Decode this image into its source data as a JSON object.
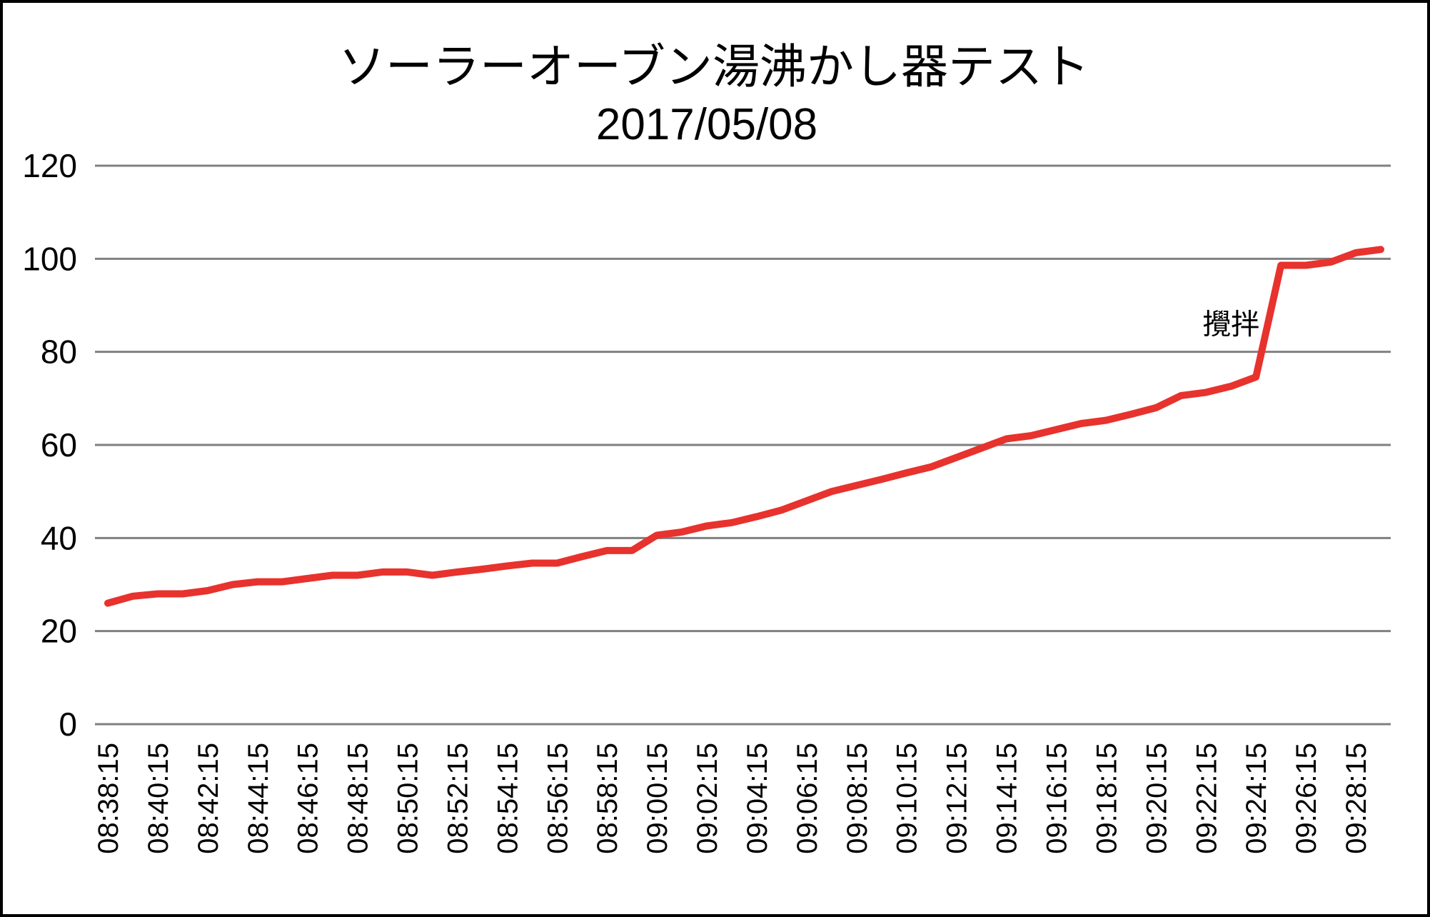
{
  "chart_data": {
    "type": "line",
    "title": "ソーラーオーブン湯沸かし器テスト",
    "subtitle": "2017/05/08",
    "xlabel": "",
    "ylabel": "",
    "ylim": [
      0,
      120
    ],
    "yticks": [
      "0",
      "20",
      "40",
      "60",
      "80",
      "100",
      "120"
    ],
    "grid": true,
    "x": [
      "08:38:15",
      "08:39:15",
      "08:40:15",
      "08:41:15",
      "08:42:15",
      "08:43:15",
      "08:44:15",
      "08:45:15",
      "08:46:15",
      "08:47:15",
      "08:48:15",
      "08:49:15",
      "08:50:15",
      "08:51:15",
      "08:52:15",
      "08:53:15",
      "08:54:15",
      "08:55:15",
      "08:56:15",
      "08:57:15",
      "08:58:15",
      "08:59:15",
      "09:00:15",
      "09:01:15",
      "09:02:15",
      "09:03:15",
      "09:04:15",
      "09:05:15",
      "09:06:15",
      "09:07:15",
      "09:08:15",
      "09:09:15",
      "09:10:15",
      "09:11:15",
      "09:12:15",
      "09:13:15",
      "09:14:15",
      "09:15:15",
      "09:16:15",
      "09:17:15",
      "09:18:15",
      "09:19:15",
      "09:20:15",
      "09:21:15",
      "09:22:15",
      "09:23:15",
      "09:24:15",
      "09:25:15",
      "09:26:15",
      "09:27:15",
      "09:28:15",
      "09:29:15"
    ],
    "xticks": [
      "08:38:15",
      "08:40:15",
      "08:42:15",
      "08:44:15",
      "08:46:15",
      "08:48:15",
      "08:50:15",
      "08:52:15",
      "08:54:15",
      "08:56:15",
      "08:58:15",
      "09:00:15",
      "09:02:15",
      "09:04:15",
      "09:06:15",
      "09:08:15",
      "09:10:15",
      "09:12:15",
      "09:14:15",
      "09:16:15",
      "09:18:15",
      "09:20:15",
      "09:22:15",
      "09:24:15",
      "09:26:15",
      "09:28:15"
    ],
    "series": [
      {
        "color": "#e8322d",
        "values": [
          26,
          27.5,
          28,
          28,
          28.7,
          30,
          30.6,
          30.6,
          31.3,
          32,
          32,
          32.7,
          32.7,
          32,
          32.7,
          33.3,
          34,
          34.6,
          34.6,
          36,
          37.3,
          37.3,
          40.6,
          41.3,
          42.6,
          43.3,
          44.6,
          46,
          48,
          50,
          51.3,
          52.6,
          54,
          55.3,
          57.3,
          59.3,
          61.3,
          62,
          63.3,
          64.6,
          65.3,
          66.6,
          68,
          70.6,
          71.3,
          72.6,
          74.6,
          98.6,
          98.6,
          99.3,
          101.3,
          102
        ]
      }
    ],
    "annotations": [
      {
        "text": "攪拌",
        "x": "09:23:15",
        "y": 86
      }
    ]
  }
}
